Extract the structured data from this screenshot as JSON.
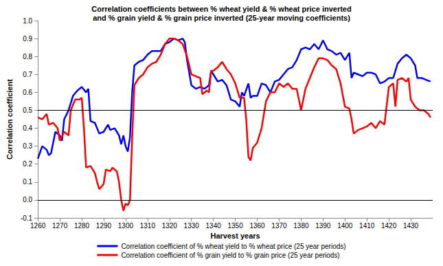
{
  "chart_data": {
    "type": "line",
    "title": "Correlation coefficients between % wheat yield & % wheat price inverted\nand % grain yield & % grain price inverted (25-year moving coefficients)",
    "x_label": "Harvest years",
    "y_label": "Correlation coefficient",
    "xlim": [
      1260,
      1440
    ],
    "xticks": [
      1260,
      1270,
      1280,
      1290,
      1300,
      1310,
      1320,
      1330,
      1340,
      1350,
      1360,
      1370,
      1380,
      1390,
      1400,
      1410,
      1420,
      1430
    ],
    "ylim": [
      -0.1,
      1.0
    ],
    "yticks": [
      -0.1,
      {
        "value": 0,
        "label": "0.0"
      },
      0.1,
      0.2,
      0.3,
      0.4,
      0.5,
      0.6,
      0.7,
      0.8,
      0.9,
      {
        "value": 1,
        "label": "1.0"
      }
    ],
    "hlines": [
      0,
      0.5
    ],
    "grid": false,
    "legend": "bottom",
    "series": [
      {
        "name": "Correlation coefficient of % wheat yield to % wheat price (25 year periods)",
        "color": "#0000ff",
        "x": [
          1260,
          1262,
          1264,
          1265,
          1266,
          1268,
          1270,
          1271,
          1272,
          1274,
          1276,
          1278,
          1280,
          1282,
          1283,
          1284,
          1286,
          1288,
          1290,
          1292,
          1293,
          1295,
          1297,
          1298,
          1299,
          1300,
          1301,
          1302,
          1303,
          1304,
          1306,
          1308,
          1310,
          1312,
          1314,
          1316,
          1318,
          1320,
          1322,
          1324,
          1326,
          1327,
          1328,
          1330,
          1332,
          1334,
          1336,
          1338,
          1339,
          1340,
          1342,
          1344,
          1346,
          1348,
          1350,
          1352,
          1353,
          1354,
          1356,
          1357,
          1358,
          1360,
          1362,
          1364,
          1366,
          1368,
          1370,
          1372,
          1374,
          1376,
          1378,
          1380,
          1382,
          1384,
          1386,
          1388,
          1390,
          1392,
          1394,
          1396,
          1398,
          1400,
          1402,
          1403,
          1404,
          1406,
          1408,
          1410,
          1412,
          1414,
          1416,
          1418,
          1420,
          1422,
          1424,
          1426,
          1428,
          1430,
          1432,
          1433,
          1435,
          1437,
          1439
        ],
        "values": [
          0.23,
          0.3,
          0.28,
          0.25,
          0.26,
          0.38,
          0.36,
          0.33,
          0.45,
          0.5,
          0.58,
          0.61,
          0.63,
          0.6,
          0.62,
          0.44,
          0.43,
          0.37,
          0.38,
          0.42,
          0.39,
          0.4,
          0.36,
          0.31,
          0.36,
          0.3,
          0.27,
          0.35,
          0.6,
          0.75,
          0.77,
          0.78,
          0.81,
          0.83,
          0.83,
          0.83,
          0.87,
          0.88,
          0.9,
          0.89,
          0.9,
          0.88,
          0.78,
          0.64,
          0.62,
          0.63,
          0.62,
          0.64,
          0.72,
          0.7,
          0.66,
          0.67,
          0.64,
          0.56,
          0.55,
          0.52,
          0.6,
          0.58,
          0.65,
          0.57,
          0.58,
          0.58,
          0.65,
          0.64,
          0.6,
          0.66,
          0.67,
          0.7,
          0.73,
          0.74,
          0.78,
          0.84,
          0.85,
          0.84,
          0.87,
          0.84,
          0.89,
          0.84,
          0.83,
          0.81,
          0.82,
          0.78,
          0.82,
          0.68,
          0.71,
          0.7,
          0.69,
          0.71,
          0.71,
          0.7,
          0.65,
          0.66,
          0.68,
          0.68,
          0.76,
          0.79,
          0.81,
          0.79,
          0.75,
          0.68,
          0.68,
          0.67,
          0.66
        ]
      },
      {
        "name": "Correlation coefficient of % grain yield to % grain price (25 year periods)",
        "color": "#ff0000",
        "x": [
          1260,
          1262,
          1264,
          1265,
          1267,
          1269,
          1270,
          1272,
          1274,
          1275,
          1277,
          1279,
          1280,
          1281,
          1282,
          1284,
          1286,
          1287,
          1288,
          1290,
          1291,
          1293,
          1294,
          1296,
          1297,
          1298,
          1299,
          1300,
          1301,
          1302,
          1303,
          1304,
          1306,
          1308,
          1310,
          1312,
          1314,
          1316,
          1318,
          1320,
          1322,
          1324,
          1326,
          1328,
          1330,
          1332,
          1334,
          1335,
          1337,
          1338,
          1339,
          1340,
          1342,
          1344,
          1346,
          1348,
          1350,
          1352,
          1354,
          1355,
          1356,
          1357,
          1358,
          1360,
          1362,
          1364,
          1366,
          1368,
          1370,
          1372,
          1374,
          1376,
          1378,
          1380,
          1382,
          1384,
          1386,
          1388,
          1390,
          1392,
          1394,
          1396,
          1398,
          1400,
          1402,
          1403,
          1404,
          1406,
          1408,
          1410,
          1412,
          1414,
          1416,
          1418,
          1420,
          1422,
          1423,
          1424,
          1426,
          1428,
          1429,
          1430,
          1432,
          1434,
          1436,
          1438,
          1439
        ],
        "values": [
          0.46,
          0.45,
          0.48,
          0.42,
          0.43,
          0.4,
          0.33,
          0.38,
          0.36,
          0.5,
          0.56,
          0.56,
          0.57,
          0.4,
          0.18,
          0.19,
          0.15,
          0.1,
          0.06,
          0.09,
          0.17,
          0.16,
          0.18,
          0.16,
          0.1,
          0.0,
          -0.06,
          -0.02,
          -0.03,
          0.0,
          0.35,
          0.64,
          0.68,
          0.7,
          0.74,
          0.76,
          0.77,
          0.81,
          0.87,
          0.9,
          0.9,
          0.89,
          0.87,
          0.8,
          0.7,
          0.69,
          0.68,
          0.59,
          0.61,
          0.6,
          0.72,
          0.72,
          0.74,
          0.77,
          0.73,
          0.7,
          0.65,
          0.57,
          0.57,
          0.45,
          0.24,
          0.22,
          0.29,
          0.32,
          0.4,
          0.55,
          0.6,
          0.6,
          0.65,
          0.63,
          0.65,
          0.62,
          0.62,
          0.5,
          0.62,
          0.68,
          0.74,
          0.79,
          0.79,
          0.78,
          0.75,
          0.73,
          0.65,
          0.52,
          0.51,
          0.45,
          0.37,
          0.39,
          0.4,
          0.41,
          0.43,
          0.4,
          0.44,
          0.42,
          0.63,
          0.65,
          0.52,
          0.67,
          0.68,
          0.66,
          0.68,
          0.56,
          0.52,
          0.5,
          0.5,
          0.48,
          0.46
        ]
      }
    ]
  }
}
